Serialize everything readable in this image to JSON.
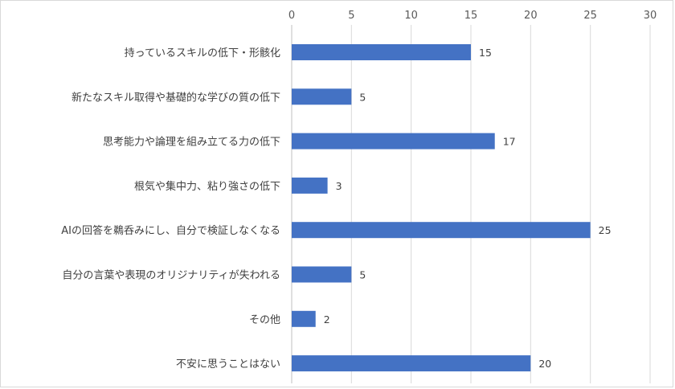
{
  "chart_data": {
    "type": "bar",
    "orientation": "horizontal",
    "title": "",
    "xlabel": "",
    "ylabel": "",
    "xlim": [
      0,
      30
    ],
    "x_ticks": [
      0,
      5,
      10,
      15,
      20,
      25,
      30
    ],
    "x_axis_position": "top",
    "grid": true,
    "legend": "none",
    "bar_color": "#4472C4",
    "categories": [
      "持っているスキルの低下・形骸化",
      "新たなスキル取得や基礎的な学びの質の低下",
      "思考能力や論理を組み立てる力の低下",
      "根気や集中力、粘り強さの低下",
      "AIの回答を鵜呑みにし、自分で検証しなくなる",
      "自分の言葉や表現のオリジナリティが失われる",
      "その他",
      "不安に思うことはない"
    ],
    "values": [
      15,
      5,
      17,
      3,
      25,
      5,
      2,
      20
    ],
    "data_labels": [
      "15",
      "5",
      "17",
      "3",
      "25",
      "5",
      "2",
      "20"
    ]
  }
}
